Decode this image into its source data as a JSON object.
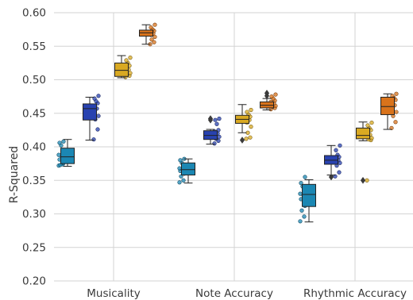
{
  "chart_data": {
    "type": "box",
    "title": "",
    "xlabel": "",
    "ylabel": "R-Squared",
    "ylim": [
      0.2,
      0.6
    ],
    "yticks": [
      0.2,
      0.25,
      0.3,
      0.35,
      0.4,
      0.45,
      0.5,
      0.55,
      0.6
    ],
    "ytick_labels": [
      "0.20",
      "0.25",
      "0.30",
      "0.35",
      "0.40",
      "0.45",
      "0.50",
      "0.55",
      "0.60"
    ],
    "grid": true,
    "legend": null,
    "categories": [
      "Musicality",
      "Note Accuracy",
      "Rhythmic Accuracy"
    ],
    "series": [
      {
        "color": "#1b87b3",
        "boxes": [
          {
            "whislo": 0.371,
            "q1": 0.375,
            "med": 0.385,
            "q3": 0.398,
            "whishi": 0.411,
            "fliers": [],
            "points": [
              0.372,
              0.374,
              0.373,
              0.376,
              0.381,
              0.385,
              0.388,
              0.392,
              0.402,
              0.406,
              0.408
            ]
          },
          {
            "whislo": 0.346,
            "q1": 0.358,
            "med": 0.366,
            "q3": 0.376,
            "whishi": 0.382,
            "fliers": [],
            "points": [
              0.347,
              0.35,
              0.356,
              0.36,
              0.364,
              0.366,
              0.368,
              0.372,
              0.376,
              0.38,
              0.382
            ]
          },
          {
            "whislo": 0.288,
            "q1": 0.311,
            "med": 0.329,
            "q3": 0.344,
            "whishi": 0.351,
            "fliers": [],
            "points": [
              0.289,
              0.296,
              0.305,
              0.312,
              0.322,
              0.328,
              0.33,
              0.335,
              0.341,
              0.346,
              0.355
            ]
          }
        ]
      },
      {
        "color": "#2842b0",
        "boxes": [
          {
            "whislo": 0.41,
            "q1": 0.44,
            "med": 0.457,
            "q3": 0.464,
            "whishi": 0.474,
            "fliers": [],
            "points": [
              0.411,
              0.426,
              0.441,
              0.446,
              0.452,
              0.457,
              0.461,
              0.465,
              0.468,
              0.472,
              0.476
            ]
          },
          {
            "whislo": 0.404,
            "q1": 0.411,
            "med": 0.417,
            "q3": 0.424,
            "whishi": 0.426,
            "fliers": [
              0.44,
              0.442
            ],
            "points": [
              0.405,
              0.409,
              0.412,
              0.415,
              0.418,
              0.42,
              0.423,
              0.425,
              0.434,
              0.44,
              0.442
            ]
          },
          {
            "whislo": 0.358,
            "q1": 0.374,
            "med": 0.38,
            "q3": 0.387,
            "whishi": 0.402,
            "fliers": [
              0.355
            ],
            "points": [
              0.356,
              0.362,
              0.372,
              0.376,
              0.378,
              0.38,
              0.382,
              0.385,
              0.388,
              0.395,
              0.402
            ]
          }
        ]
      },
      {
        "color": "#d9a922",
        "boxes": [
          {
            "whislo": 0.503,
            "q1": 0.505,
            "med": 0.514,
            "q3": 0.525,
            "whishi": 0.536,
            "fliers": [],
            "points": [
              0.504,
              0.506,
              0.508,
              0.51,
              0.513,
              0.515,
              0.518,
              0.521,
              0.525,
              0.529,
              0.533
            ]
          },
          {
            "whislo": 0.421,
            "q1": 0.435,
            "med": 0.441,
            "q3": 0.447,
            "whishi": 0.463,
            "fliers": [
              0.41
            ],
            "points": [
              0.412,
              0.414,
              0.421,
              0.43,
              0.436,
              0.44,
              0.442,
              0.445,
              0.448,
              0.452,
              0.455
            ]
          },
          {
            "whislo": 0.409,
            "q1": 0.412,
            "med": 0.417,
            "q3": 0.428,
            "whishi": 0.437,
            "fliers": [
              0.35
            ],
            "points": [
              0.35,
              0.41,
              0.411,
              0.413,
              0.416,
              0.418,
              0.421,
              0.425,
              0.428,
              0.432,
              0.436
            ]
          }
        ]
      },
      {
        "color": "#d9731b",
        "boxes": [
          {
            "whislo": 0.553,
            "q1": 0.565,
            "med": 0.57,
            "q3": 0.574,
            "whishi": 0.582,
            "fliers": [],
            "points": [
              0.553,
              0.556,
              0.56,
              0.564,
              0.567,
              0.569,
              0.571,
              0.573,
              0.575,
              0.578,
              0.582
            ]
          },
          {
            "whislo": 0.455,
            "q1": 0.458,
            "med": 0.462,
            "q3": 0.467,
            "whishi": 0.472,
            "fliers": [
              0.48,
              0.476
            ],
            "points": [
              0.456,
              0.458,
              0.46,
              0.461,
              0.463,
              0.465,
              0.467,
              0.469,
              0.472,
              0.475,
              0.478
            ]
          },
          {
            "whislo": 0.426,
            "q1": 0.448,
            "med": 0.46,
            "q3": 0.474,
            "whishi": 0.479,
            "fliers": [],
            "points": [
              0.428,
              0.437,
              0.446,
              0.452,
              0.458,
              0.462,
              0.466,
              0.47,
              0.473,
              0.476,
              0.479
            ]
          }
        ]
      }
    ]
  }
}
